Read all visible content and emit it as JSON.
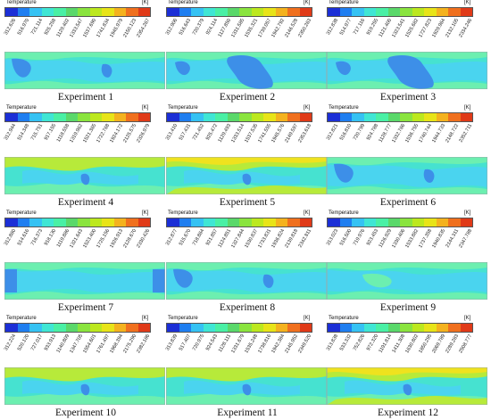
{
  "legend_colors": [
    "#1c2fd6",
    "#1f7ef0",
    "#35c2f3",
    "#3fe6d4",
    "#49f0a5",
    "#5ad86a",
    "#8ae43e",
    "#bce81e",
    "#e8e418",
    "#f4b21e",
    "#f0701e",
    "#e03a18"
  ],
  "colormap": {
    "cold": "#3d8fe8",
    "cool": "#4ad4ef",
    "mid": "#46e2d0",
    "mint": "#6cefb0",
    "warm": "#b7ea3a",
    "hot": "#efe21e"
  },
  "panels": [
    {
      "caption": "Experiment 1",
      "title": "Temperature",
      "unit": "[K]",
      "ticks": [
        "312.626",
        "516.970",
        "721.114",
        "925.258",
        "1129.402",
        "1333.547",
        "1537.690",
        "1741.834",
        "1945.979",
        "2150.123",
        "2354.267"
      ],
      "pattern": "cool"
    },
    {
      "caption": "Experiment 2",
      "title": "Temperature",
      "unit": "[K]",
      "ticks": [
        "312.906",
        "516.643",
        "720.379",
        "924.114",
        "1127.850",
        "1331.585",
        "1535.321",
        "1739.057",
        "1942.792",
        "2146.528",
        "2350.263"
      ],
      "pattern": "blue"
    },
    {
      "caption": "Experiment 3",
      "title": "Temperature",
      "unit": "[K]",
      "ticks": [
        "312.838",
        "514.977",
        "717.116",
        "919.255",
        "1121.400",
        "1323.541",
        "1525.682",
        "1727.823",
        "1929.964",
        "2132.105",
        "2334.246"
      ],
      "pattern": "blue"
    },
    {
      "caption": "Experiment 4",
      "title": "Temperature",
      "unit": "[K]",
      "ticks": [
        "312.944",
        "514.348",
        "715.751",
        "917.155",
        "1118.558",
        "1319.962",
        "1521.365",
        "1722.768",
        "1924.172",
        "2125.575",
        "2326.979"
      ],
      "pattern": "warm"
    },
    {
      "caption": "Experiment 5",
      "title": "Temperature",
      "unit": "[K]",
      "ticks": [
        "313.410",
        "517.431",
        "721.452",
        "925.472",
        "1129.493",
        "1333.514",
        "1537.535",
        "1741.555",
        "1945.576",
        "2149.597",
        "2353.618"
      ],
      "pattern": "hot"
    },
    {
      "caption": "Experiment 6",
      "title": "Temperature",
      "unit": "[K]",
      "ticks": [
        "312.821",
        "516.810",
        "720.799",
        "924.788",
        "1128.777",
        "1332.766",
        "1536.755",
        "1740.744",
        "1944.733",
        "2148.722",
        "2352.711"
      ],
      "pattern": "cool"
    },
    {
      "caption": "Experiment 7",
      "title": "Temperature",
      "unit": "[K]",
      "ticks": [
        "312.860",
        "514.616",
        "716.373",
        "918.130",
        "1119.886",
        "1321.643",
        "1523.400",
        "1725.156",
        "1926.913",
        "2128.670",
        "2330.426"
      ],
      "pattern": "cyan"
    },
    {
      "caption": "Experiment 8",
      "title": "Temperature",
      "unit": "[K]",
      "ticks": [
        "312.877",
        "515.670",
        "718.864",
        "921.857",
        "1124.851",
        "1327.844",
        "1530.837",
        "1733.831",
        "1936.824",
        "2139.818",
        "2342.811"
      ],
      "pattern": "cool"
    },
    {
      "caption": "Experiment 9",
      "title": "Temperature",
      "unit": "[K]",
      "ticks": [
        "313.023",
        "516.500",
        "719.976",
        "923.453",
        "1126.929",
        "1330.406",
        "1533.882",
        "1737.358",
        "1940.835",
        "2144.311",
        "2347.788"
      ],
      "pattern": "mid"
    },
    {
      "caption": "Experiment 10",
      "title": "Temperature",
      "unit": "[K]",
      "ticks": [
        "312.224",
        "520.120",
        "727.017",
        "933.913",
        "1140.809",
        "1347.705",
        "1554.601",
        "1761.497",
        "1968.394",
        "2175.290",
        "2382.186"
      ],
      "pattern": "warm"
    },
    {
      "caption": "Experiment 11",
      "title": "Temperature",
      "unit": "[K]",
      "ticks": [
        "313.839",
        "517.407",
        "720.975",
        "924.543",
        "1128.111",
        "1331.679",
        "1535.248",
        "1738.816",
        "1942.384",
        "2145.952",
        "2349.520"
      ],
      "pattern": "warm"
    },
    {
      "caption": "Experiment 12",
      "title": "Temperature",
      "unit": "[K]",
      "ticks": [
        "313.838",
        "533.332",
        "752.826",
        "972.320",
        "1191.814",
        "1411.308",
        "1630.802",
        "1850.295",
        "2069.789",
        "2289.283",
        "2508.777"
      ],
      "pattern": "hot"
    }
  ]
}
